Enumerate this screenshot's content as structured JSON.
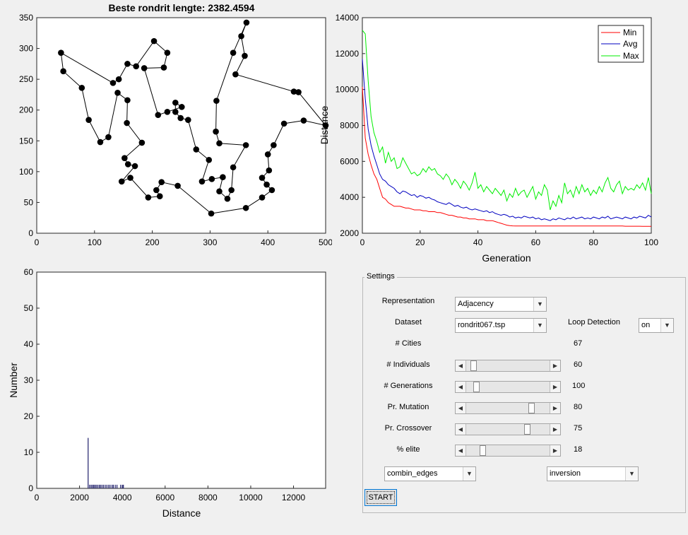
{
  "tour_plot": {
    "title": "Beste rondrit lengte: 2382.4594",
    "xticks": [
      "0",
      "100",
      "200",
      "300",
      "400",
      "500"
    ],
    "yticks": [
      "0",
      "50",
      "100",
      "150",
      "200",
      "250",
      "300",
      "350"
    ],
    "xlim": [
      0,
      500
    ],
    "ylim": [
      0,
      350
    ],
    "route": [
      [
        42,
        293
      ],
      [
        46,
        263
      ],
      [
        78,
        236
      ],
      [
        90,
        184
      ],
      [
        110,
        148
      ],
      [
        124,
        156
      ],
      [
        140,
        228
      ],
      [
        157,
        216
      ],
      [
        156,
        179
      ],
      [
        182,
        147
      ],
      [
        152,
        122
      ],
      [
        158,
        112
      ],
      [
        170,
        109
      ],
      [
        147,
        84
      ],
      [
        162,
        90
      ],
      [
        193,
        58
      ],
      [
        213,
        60
      ],
      [
        207,
        70
      ],
      [
        216,
        83
      ],
      [
        244,
        77
      ],
      [
        302,
        32
      ],
      [
        362,
        41
      ],
      [
        390,
        58
      ],
      [
        407,
        70
      ],
      [
        398,
        79
      ],
      [
        390,
        90
      ],
      [
        402,
        102
      ],
      [
        400,
        128
      ],
      [
        410,
        143
      ],
      [
        428,
        178
      ],
      [
        462,
        183
      ],
      [
        500,
        175
      ],
      [
        453,
        229
      ],
      [
        445,
        230
      ],
      [
        344,
        258
      ],
      [
        360,
        288
      ],
      [
        354,
        320
      ],
      [
        363,
        342
      ],
      [
        340,
        293
      ],
      [
        311,
        215
      ],
      [
        310,
        165
      ],
      [
        316,
        146
      ],
      [
        362,
        143
      ],
      [
        340,
        107
      ],
      [
        337,
        70
      ],
      [
        330,
        56
      ],
      [
        316,
        68
      ],
      [
        322,
        91
      ],
      [
        303,
        88
      ],
      [
        286,
        84
      ],
      [
        298,
        119
      ],
      [
        276,
        136
      ],
      [
        262,
        184
      ],
      [
        249,
        187
      ],
      [
        240,
        197
      ],
      [
        240,
        212
      ],
      [
        251,
        205
      ],
      [
        226,
        197
      ],
      [
        210,
        192
      ],
      [
        186,
        268
      ],
      [
        220,
        269
      ],
      [
        226,
        293
      ],
      [
        203,
        312
      ],
      [
        172,
        271
      ],
      [
        157,
        275
      ],
      [
        142,
        250
      ],
      [
        132,
        244
      ],
      [
        42,
        293
      ]
    ]
  },
  "dist_plot": {
    "xlabel": "Generation",
    "ylabel": "Distance",
    "xticks": [
      "0",
      "20",
      "40",
      "60",
      "80",
      "100"
    ],
    "yticks": [
      "2000",
      "4000",
      "6000",
      "8000",
      "10000",
      "12000",
      "14000"
    ],
    "xlim": [
      0,
      100
    ],
    "ylim": [
      2000,
      14000
    ],
    "legend": [
      "Min",
      "Avg",
      "Max"
    ],
    "colors": [
      "#ff0000",
      "#0000c0",
      "#00ee00"
    ],
    "generations": 100,
    "min": [
      10150,
      7300,
      6400,
      5800,
      5300,
      5000,
      4500,
      4000,
      3900,
      3700,
      3600,
      3500,
      3500,
      3500,
      3450,
      3400,
      3400,
      3350,
      3300,
      3300,
      3300,
      3250,
      3250,
      3200,
      3200,
      3200,
      3150,
      3150,
      3100,
      3050,
      3000,
      3000,
      2950,
      2900,
      2900,
      2850,
      2850,
      2800,
      2800,
      2800,
      2750,
      2750,
      2750,
      2700,
      2700,
      2700,
      2650,
      2600,
      2550,
      2500,
      2450,
      2420,
      2410,
      2400,
      2400,
      2400,
      2400,
      2400,
      2400,
      2400,
      2400,
      2400,
      2400,
      2400,
      2400,
      2400,
      2400,
      2400,
      2400,
      2400,
      2400,
      2400,
      2400,
      2400,
      2400,
      2400,
      2400,
      2400,
      2400,
      2400,
      2400,
      2400,
      2400,
      2400,
      2400,
      2400,
      2400,
      2400,
      2400,
      2400,
      2400,
      2390,
      2390,
      2390,
      2390,
      2390,
      2390,
      2385,
      2385,
      2383,
      2382
    ],
    "avg": [
      11700,
      9500,
      7800,
      6900,
      6300,
      5800,
      5300,
      5000,
      4900,
      4700,
      4600,
      4500,
      4300,
      4200,
      4350,
      4300,
      4200,
      4100,
      4150,
      4000,
      4100,
      4050,
      3950,
      4000,
      3900,
      3850,
      3750,
      3700,
      3650,
      3600,
      3700,
      3600,
      3500,
      3550,
      3450,
      3400,
      3450,
      3350,
      3300,
      3350,
      3300,
      3250,
      3200,
      3250,
      3150,
      3200,
      3100,
      3050,
      3000,
      3050,
      3000,
      2900,
      2950,
      2850,
      2900,
      2850,
      2950,
      2900,
      2850,
      2900,
      2800,
      2850,
      2750,
      2800,
      2750,
      2700,
      2800,
      2750,
      2850,
      2800,
      2750,
      2850,
      2800,
      2900,
      2800,
      2850,
      2900,
      2800,
      2850,
      2800,
      2900,
      2850,
      2800,
      2900,
      2850,
      2950,
      2800,
      2850,
      2900,
      2850,
      2800,
      2900,
      2850,
      2800,
      2900,
      2850,
      2950,
      2900,
      2850,
      3000,
      2900
    ],
    "max": [
      13300,
      13100,
      10500,
      8500,
      7600,
      7100,
      6500,
      6800,
      5900,
      6500,
      6000,
      6200,
      5600,
      5700,
      6200,
      5900,
      5600,
      5300,
      5400,
      5200,
      5300,
      5600,
      5400,
      5700,
      5500,
      5600,
      5300,
      5200,
      5000,
      5300,
      5100,
      4700,
      5000,
      4800,
      4500,
      4900,
      4700,
      4400,
      4800,
      5400,
      4500,
      4700,
      4300,
      4600,
      4400,
      4200,
      4500,
      4300,
      4100,
      4400,
      3800,
      4200,
      4000,
      4500,
      4100,
      4300,
      4400,
      4000,
      4300,
      4600,
      3900,
      4300,
      4100,
      4700,
      4400,
      3300,
      3800,
      3500,
      4100,
      3700,
      4800,
      4200,
      4400,
      4000,
      4600,
      4200,
      4700,
      4300,
      4500,
      4100,
      4400,
      4200,
      4600,
      4300,
      4800,
      5100,
      4500,
      4300,
      4700,
      4900,
      4200,
      4600,
      4400,
      4500,
      4400,
      4700,
      4500,
      4800,
      4400,
      5100,
      4200
    ]
  },
  "hist_plot": {
    "xlabel": "Distance",
    "ylabel": "Number",
    "xticks": [
      "0",
      "2000",
      "4000",
      "6000",
      "8000",
      "10000",
      "12000"
    ],
    "yticks": [
      "0",
      "10",
      "20",
      "30",
      "40",
      "50",
      "60"
    ],
    "xlim": [
      0,
      13500
    ],
    "ylim": [
      0,
      60
    ],
    "bins": [
      [
        2382,
        14
      ],
      [
        2450,
        1
      ],
      [
        2520,
        1
      ],
      [
        2580,
        1
      ],
      [
        2640,
        1
      ],
      [
        2700,
        1
      ],
      [
        2760,
        1
      ],
      [
        2830,
        1
      ],
      [
        2900,
        1
      ],
      [
        2960,
        1
      ],
      [
        3030,
        1
      ],
      [
        3100,
        1
      ],
      [
        3180,
        1
      ],
      [
        3260,
        1
      ],
      [
        3340,
        1
      ],
      [
        3410,
        1
      ],
      [
        3500,
        1
      ],
      [
        3560,
        1
      ],
      [
        3650,
        1
      ],
      [
        3730,
        1
      ],
      [
        3900,
        1
      ],
      [
        3980,
        1
      ],
      [
        4030,
        1
      ]
    ]
  },
  "settings": {
    "title": "Settings",
    "representation_label": "Representation",
    "representation_value": "Adjacency",
    "dataset_label": "Dataset",
    "dataset_value": "rondrit067.tsp",
    "loop_label": "Loop Detection",
    "loop_value": "on",
    "cities_label": "# Cities",
    "cities_value": "67",
    "individuals_label": "# Individuals",
    "individuals_value": "60",
    "individuals_pos": 0.06,
    "generations_label": "# Generations",
    "generations_value": "100",
    "generations_pos": 0.1,
    "mutation_label": "Pr. Mutation",
    "mutation_value": "80",
    "mutation_pos": 0.8,
    "crossover_label": "Pr. Crossover",
    "crossover_value": "75",
    "crossover_pos": 0.75,
    "elite_label": "% elite",
    "elite_value": "18",
    "elite_pos": 0.18,
    "crossover_operator": "combin_edges",
    "mutation_operator": "inversion",
    "start_label": "START"
  }
}
